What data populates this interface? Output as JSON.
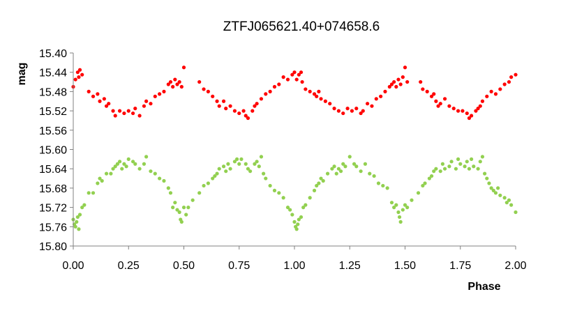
{
  "chart_data": {
    "type": "scatter",
    "title": "ZTFJ065621.40+074658.6",
    "xlabel": "Phase",
    "ylabel": "mag",
    "xlim": [
      0.0,
      2.0
    ],
    "ylim": [
      15.4,
      15.8
    ],
    "y_inverted": true,
    "grid": false,
    "x_ticks": [
      "0.00",
      "0.25",
      "0.50",
      "0.75",
      "1.00",
      "1.25",
      "1.50",
      "1.75",
      "2.00"
    ],
    "y_ticks": [
      "15.40",
      "15.44",
      "15.48",
      "15.52",
      "15.56",
      "15.60",
      "15.64",
      "15.68",
      "15.72",
      "15.76",
      "15.80"
    ],
    "series": [
      {
        "color": "#ff0000",
        "points": [
          [
            0.0,
            15.47
          ],
          [
            0.01,
            15.455
          ],
          [
            0.02,
            15.44
          ],
          [
            0.025,
            15.45
          ],
          [
            0.03,
            15.435
          ],
          [
            0.04,
            15.445
          ],
          [
            0.07,
            15.48
          ],
          [
            0.09,
            15.49
          ],
          [
            0.11,
            15.485
          ],
          [
            0.12,
            15.5
          ],
          [
            0.14,
            15.495
          ],
          [
            0.15,
            15.51
          ],
          [
            0.16,
            15.505
          ],
          [
            0.18,
            15.52
          ],
          [
            0.19,
            15.53
          ],
          [
            0.21,
            15.52
          ],
          [
            0.23,
            15.525
          ],
          [
            0.25,
            15.52
          ],
          [
            0.27,
            15.525
          ],
          [
            0.28,
            15.515
          ],
          [
            0.3,
            15.53
          ],
          [
            0.32,
            15.51
          ],
          [
            0.33,
            15.5
          ],
          [
            0.35,
            15.505
          ],
          [
            0.37,
            15.49
          ],
          [
            0.39,
            15.485
          ],
          [
            0.41,
            15.48
          ],
          [
            0.43,
            15.465
          ],
          [
            0.44,
            15.46
          ],
          [
            0.45,
            15.47
          ],
          [
            0.46,
            15.455
          ],
          [
            0.47,
            15.465
          ],
          [
            0.48,
            15.46
          ],
          [
            0.49,
            15.47
          ],
          [
            0.5,
            15.43
          ],
          [
            0.57,
            15.46
          ],
          [
            0.59,
            15.475
          ],
          [
            0.61,
            15.48
          ],
          [
            0.63,
            15.49
          ],
          [
            0.65,
            15.5
          ],
          [
            0.66,
            15.51
          ],
          [
            0.68,
            15.5
          ],
          [
            0.69,
            15.515
          ],
          [
            0.71,
            15.51
          ],
          [
            0.73,
            15.52
          ],
          [
            0.75,
            15.525
          ],
          [
            0.77,
            15.52
          ],
          [
            0.78,
            15.53
          ],
          [
            0.79,
            15.535
          ],
          [
            0.81,
            15.52
          ],
          [
            0.82,
            15.51
          ],
          [
            0.83,
            15.505
          ],
          [
            0.85,
            15.495
          ],
          [
            0.87,
            15.485
          ],
          [
            0.89,
            15.48
          ],
          [
            0.91,
            15.47
          ],
          [
            0.93,
            15.465
          ],
          [
            0.95,
            15.45
          ],
          [
            0.97,
            15.455
          ],
          [
            0.99,
            15.445
          ],
          [
            1.0,
            15.44
          ],
          [
            1.01,
            15.455
          ],
          [
            1.02,
            15.445
          ],
          [
            1.03,
            15.44
          ],
          [
            1.035,
            15.46
          ],
          [
            1.05,
            15.475
          ],
          [
            1.07,
            15.48
          ],
          [
            1.09,
            15.485
          ],
          [
            1.1,
            15.49
          ],
          [
            1.11,
            15.48
          ],
          [
            1.12,
            15.495
          ],
          [
            1.14,
            15.5
          ],
          [
            1.16,
            15.505
          ],
          [
            1.18,
            15.515
          ],
          [
            1.2,
            15.52
          ],
          [
            1.22,
            15.525
          ],
          [
            1.24,
            15.515
          ],
          [
            1.26,
            15.52
          ],
          [
            1.28,
            15.515
          ],
          [
            1.3,
            15.525
          ],
          [
            1.31,
            15.52
          ],
          [
            1.33,
            15.505
          ],
          [
            1.35,
            15.51
          ],
          [
            1.37,
            15.495
          ],
          [
            1.39,
            15.49
          ],
          [
            1.41,
            15.48
          ],
          [
            1.43,
            15.47
          ],
          [
            1.44,
            15.465
          ],
          [
            1.45,
            15.46
          ],
          [
            1.46,
            15.47
          ],
          [
            1.47,
            15.455
          ],
          [
            1.48,
            15.465
          ],
          [
            1.49,
            15.45
          ],
          [
            1.5,
            15.43
          ],
          [
            1.51,
            15.46
          ],
          [
            1.57,
            15.46
          ],
          [
            1.58,
            15.475
          ],
          [
            1.6,
            15.48
          ],
          [
            1.62,
            15.49
          ],
          [
            1.63,
            15.485
          ],
          [
            1.64,
            15.5
          ],
          [
            1.65,
            15.51
          ],
          [
            1.66,
            15.505
          ],
          [
            1.68,
            15.495
          ],
          [
            1.7,
            15.51
          ],
          [
            1.72,
            15.515
          ],
          [
            1.74,
            15.52
          ],
          [
            1.76,
            15.52
          ],
          [
            1.78,
            15.525
          ],
          [
            1.79,
            15.535
          ],
          [
            1.8,
            15.53
          ],
          [
            1.82,
            15.52
          ],
          [
            1.83,
            15.515
          ],
          [
            1.84,
            15.51
          ],
          [
            1.85,
            15.5
          ],
          [
            1.87,
            15.49
          ],
          [
            1.89,
            15.48
          ],
          [
            1.91,
            15.485
          ],
          [
            1.93,
            15.475
          ],
          [
            1.95,
            15.465
          ],
          [
            1.97,
            15.46
          ],
          [
            1.98,
            15.45
          ],
          [
            2.0,
            15.445
          ]
        ]
      },
      {
        "color": "#92d050",
        "points": [
          [
            0.0,
            15.745
          ],
          [
            0.005,
            15.755
          ],
          [
            0.01,
            15.76
          ],
          [
            0.015,
            15.75
          ],
          [
            0.02,
            15.74
          ],
          [
            0.025,
            15.765
          ],
          [
            0.03,
            15.735
          ],
          [
            0.04,
            15.72
          ],
          [
            0.05,
            15.715
          ],
          [
            0.07,
            15.69
          ],
          [
            0.09,
            15.69
          ],
          [
            0.11,
            15.67
          ],
          [
            0.12,
            15.66
          ],
          [
            0.13,
            15.665
          ],
          [
            0.15,
            15.65
          ],
          [
            0.17,
            15.65
          ],
          [
            0.18,
            15.64
          ],
          [
            0.19,
            15.635
          ],
          [
            0.2,
            15.63
          ],
          [
            0.21,
            15.625
          ],
          [
            0.22,
            15.64
          ],
          [
            0.23,
            15.63
          ],
          [
            0.24,
            15.635
          ],
          [
            0.25,
            15.62
          ],
          [
            0.27,
            15.625
          ],
          [
            0.28,
            15.63
          ],
          [
            0.3,
            15.64
          ],
          [
            0.32,
            15.63
          ],
          [
            0.33,
            15.615
          ],
          [
            0.35,
            15.645
          ],
          [
            0.37,
            15.65
          ],
          [
            0.39,
            15.66
          ],
          [
            0.41,
            15.665
          ],
          [
            0.43,
            15.68
          ],
          [
            0.44,
            15.69
          ],
          [
            0.45,
            15.72
          ],
          [
            0.46,
            15.71
          ],
          [
            0.47,
            15.725
          ],
          [
            0.48,
            15.73
          ],
          [
            0.485,
            15.745
          ],
          [
            0.49,
            15.75
          ],
          [
            0.5,
            15.72
          ],
          [
            0.51,
            15.735
          ],
          [
            0.52,
            15.72
          ],
          [
            0.54,
            15.705
          ],
          [
            0.57,
            15.69
          ],
          [
            0.59,
            15.675
          ],
          [
            0.61,
            15.67
          ],
          [
            0.63,
            15.66
          ],
          [
            0.64,
            15.655
          ],
          [
            0.65,
            15.65
          ],
          [
            0.66,
            15.64
          ],
          [
            0.68,
            15.635
          ],
          [
            0.69,
            15.645
          ],
          [
            0.7,
            15.63
          ],
          [
            0.71,
            15.64
          ],
          [
            0.73,
            15.625
          ],
          [
            0.74,
            15.62
          ],
          [
            0.75,
            15.63
          ],
          [
            0.76,
            15.62
          ],
          [
            0.78,
            15.63
          ],
          [
            0.79,
            15.64
          ],
          [
            0.8,
            15.645
          ],
          [
            0.82,
            15.63
          ],
          [
            0.83,
            15.625
          ],
          [
            0.84,
            15.635
          ],
          [
            0.85,
            15.615
          ],
          [
            0.86,
            15.65
          ],
          [
            0.87,
            15.66
          ],
          [
            0.89,
            15.675
          ],
          [
            0.91,
            15.685
          ],
          [
            0.93,
            15.69
          ],
          [
            0.95,
            15.7
          ],
          [
            0.97,
            15.72
          ],
          [
            0.98,
            15.725
          ],
          [
            0.99,
            15.735
          ],
          [
            1.0,
            15.75
          ],
          [
            1.005,
            15.76
          ],
          [
            1.01,
            15.765
          ],
          [
            1.015,
            15.755
          ],
          [
            1.02,
            15.745
          ],
          [
            1.03,
            15.74
          ],
          [
            1.04,
            15.72
          ],
          [
            1.05,
            15.715
          ],
          [
            1.07,
            15.7
          ],
          [
            1.09,
            15.685
          ],
          [
            1.1,
            15.675
          ],
          [
            1.11,
            15.67
          ],
          [
            1.12,
            15.66
          ],
          [
            1.13,
            15.665
          ],
          [
            1.15,
            15.65
          ],
          [
            1.17,
            15.64
          ],
          [
            1.18,
            15.635
          ],
          [
            1.19,
            15.65
          ],
          [
            1.2,
            15.64
          ],
          [
            1.21,
            15.645
          ],
          [
            1.22,
            15.63
          ],
          [
            1.23,
            15.635
          ],
          [
            1.25,
            15.615
          ],
          [
            1.27,
            15.63
          ],
          [
            1.28,
            15.635
          ],
          [
            1.3,
            15.645
          ],
          [
            1.32,
            15.63
          ],
          [
            1.34,
            15.65
          ],
          [
            1.36,
            15.655
          ],
          [
            1.38,
            15.67
          ],
          [
            1.4,
            15.675
          ],
          [
            1.42,
            15.68
          ],
          [
            1.44,
            15.71
          ],
          [
            1.45,
            15.72
          ],
          [
            1.46,
            15.715
          ],
          [
            1.47,
            15.73
          ],
          [
            1.475,
            15.74
          ],
          [
            1.48,
            15.75
          ],
          [
            1.49,
            15.725
          ],
          [
            1.5,
            15.715
          ],
          [
            1.51,
            15.72
          ],
          [
            1.53,
            15.705
          ],
          [
            1.56,
            15.69
          ],
          [
            1.58,
            15.675
          ],
          [
            1.59,
            15.67
          ],
          [
            1.61,
            15.66
          ],
          [
            1.62,
            15.655
          ],
          [
            1.63,
            15.645
          ],
          [
            1.64,
            15.64
          ],
          [
            1.66,
            15.645
          ],
          [
            1.67,
            15.63
          ],
          [
            1.68,
            15.64
          ],
          [
            1.7,
            15.635
          ],
          [
            1.71,
            15.625
          ],
          [
            1.73,
            15.64
          ],
          [
            1.74,
            15.62
          ],
          [
            1.75,
            15.63
          ],
          [
            1.77,
            15.635
          ],
          [
            1.78,
            15.625
          ],
          [
            1.79,
            15.64
          ],
          [
            1.8,
            15.62
          ],
          [
            1.81,
            15.635
          ],
          [
            1.83,
            15.64
          ],
          [
            1.84,
            15.625
          ],
          [
            1.85,
            15.615
          ],
          [
            1.86,
            15.65
          ],
          [
            1.87,
            15.66
          ],
          [
            1.88,
            15.67
          ],
          [
            1.89,
            15.68
          ],
          [
            1.9,
            15.685
          ],
          [
            1.91,
            15.69
          ],
          [
            1.92,
            15.68
          ],
          [
            1.93,
            15.695
          ],
          [
            1.95,
            15.7
          ],
          [
            1.96,
            15.71
          ],
          [
            1.97,
            15.705
          ],
          [
            1.98,
            15.715
          ],
          [
            2.0,
            15.73
          ]
        ]
      }
    ]
  }
}
